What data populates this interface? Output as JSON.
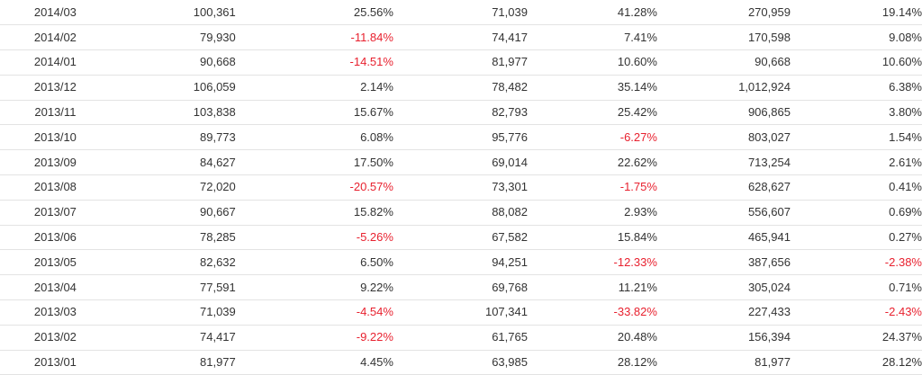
{
  "table": {
    "rows": [
      {
        "month": "2014/03",
        "v1": "100,361",
        "p1": "25.56%",
        "v2": "71,039",
        "p2": "41.28%",
        "v3": "270,959",
        "p3": "19.14%"
      },
      {
        "month": "2014/02",
        "v1": "79,930",
        "p1": "-11.84%",
        "v2": "74,417",
        "p2": "7.41%",
        "v3": "170,598",
        "p3": "9.08%"
      },
      {
        "month": "2014/01",
        "v1": "90,668",
        "p1": "-14.51%",
        "v2": "81,977",
        "p2": "10.60%",
        "v3": "90,668",
        "p3": "10.60%"
      },
      {
        "month": "2013/12",
        "v1": "106,059",
        "p1": "2.14%",
        "v2": "78,482",
        "p2": "35.14%",
        "v3": "1,012,924",
        "p3": "6.38%"
      },
      {
        "month": "2013/11",
        "v1": "103,838",
        "p1": "15.67%",
        "v2": "82,793",
        "p2": "25.42%",
        "v3": "906,865",
        "p3": "3.80%"
      },
      {
        "month": "2013/10",
        "v1": "89,773",
        "p1": "6.08%",
        "v2": "95,776",
        "p2": "-6.27%",
        "v3": "803,027",
        "p3": "1.54%"
      },
      {
        "month": "2013/09",
        "v1": "84,627",
        "p1": "17.50%",
        "v2": "69,014",
        "p2": "22.62%",
        "v3": "713,254",
        "p3": "2.61%"
      },
      {
        "month": "2013/08",
        "v1": "72,020",
        "p1": "-20.57%",
        "v2": "73,301",
        "p2": "-1.75%",
        "v3": "628,627",
        "p3": "0.41%"
      },
      {
        "month": "2013/07",
        "v1": "90,667",
        "p1": "15.82%",
        "v2": "88,082",
        "p2": "2.93%",
        "v3": "556,607",
        "p3": "0.69%"
      },
      {
        "month": "2013/06",
        "v1": "78,285",
        "p1": "-5.26%",
        "v2": "67,582",
        "p2": "15.84%",
        "v3": "465,941",
        "p3": "0.27%"
      },
      {
        "month": "2013/05",
        "v1": "82,632",
        "p1": "6.50%",
        "v2": "94,251",
        "p2": "-12.33%",
        "v3": "387,656",
        "p3": "-2.38%"
      },
      {
        "month": "2013/04",
        "v1": "77,591",
        "p1": "9.22%",
        "v2": "69,768",
        "p2": "11.21%",
        "v3": "305,024",
        "p3": "0.71%"
      },
      {
        "month": "2013/03",
        "v1": "71,039",
        "p1": "-4.54%",
        "v2": "107,341",
        "p2": "-33.82%",
        "v3": "227,433",
        "p3": "-2.43%"
      },
      {
        "month": "2013/02",
        "v1": "74,417",
        "p1": "-9.22%",
        "v2": "61,765",
        "p2": "20.48%",
        "v3": "156,394",
        "p3": "24.37%"
      },
      {
        "month": "2013/01",
        "v1": "81,977",
        "p1": "4.45%",
        "v2": "63,985",
        "p2": "28.12%",
        "v3": "81,977",
        "p3": "28.12%"
      }
    ]
  },
  "colors": {
    "text": "#333333",
    "negative": "#e8212f",
    "row_border": "#e3e3e3"
  }
}
